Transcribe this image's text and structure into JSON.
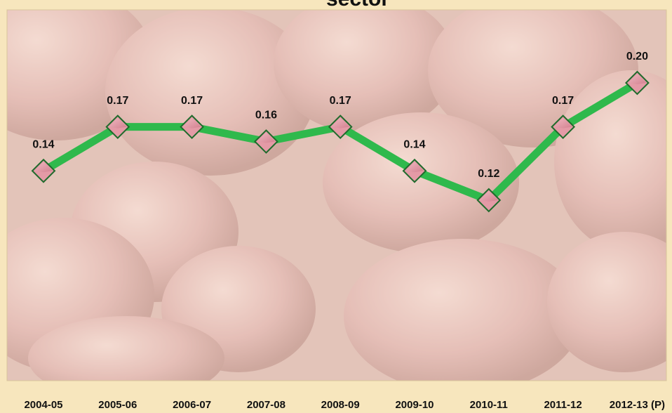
{
  "chart_data": {
    "type": "line",
    "title": "sector",
    "categories": [
      "2004-05",
      "2005-06",
      "2006-07",
      "2007-08",
      "2008-09",
      "2009-10",
      "2010-11",
      "2011-12",
      "2012-13 (P)"
    ],
    "values": [
      0.14,
      0.17,
      0.17,
      0.16,
      0.17,
      0.14,
      0.12,
      0.17,
      0.2
    ],
    "value_labels": [
      "0.14",
      "0.17",
      "0.17",
      "0.16",
      "0.17",
      "0.14",
      "0.12",
      "0.17",
      "0.20"
    ],
    "color": "#2fb94c",
    "marker_color": "#e49aa6"
  }
}
